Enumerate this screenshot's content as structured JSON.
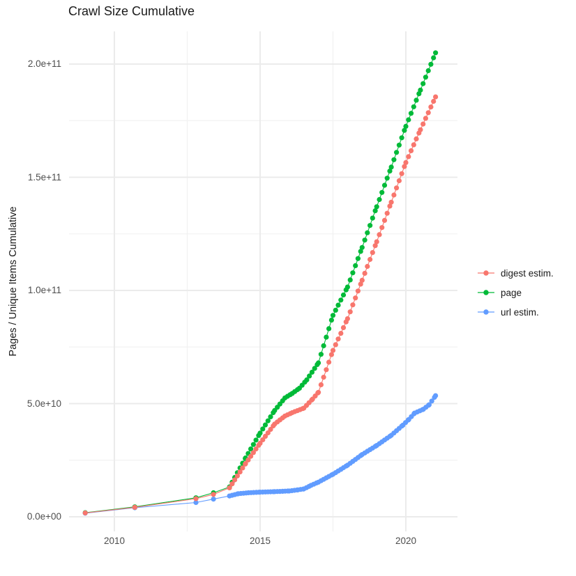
{
  "chart_data": {
    "type": "line",
    "marker": "point",
    "title": "Crawl Size Cumulative",
    "xlabel": "",
    "ylabel": "Pages / Unique Items Cumulative",
    "values_unit": "1e9 (billions of pages / unique items)",
    "x_range_years": [
      2008.45,
      2021.77
    ],
    "y_range": [
      0,
      215000000000.0
    ],
    "legend_position": "right",
    "grid": "on",
    "dot_interval_years": 0.09,
    "x_axis": {
      "ticks": [
        {
          "year": 2010,
          "label": "2010"
        },
        {
          "year": 2015,
          "label": "2015"
        },
        {
          "year": 2020,
          "label": "2020"
        }
      ],
      "minor_years": [
        2012.5,
        2017.5
      ]
    },
    "y_axis": {
      "ticks": [
        {
          "value_e9": 0,
          "label": "0.0e+00"
        },
        {
          "value_e9": 50,
          "label": "5.0e+10"
        },
        {
          "value_e9": 100,
          "label": "1.0e+11"
        },
        {
          "value_e9": 150,
          "label": "1.5e+11"
        },
        {
          "value_e9": 200,
          "label": "2.0e+11"
        }
      ],
      "minor_values_e9": [
        25,
        75,
        125,
        175
      ]
    },
    "series": [
      {
        "name": "digest estim.",
        "color": "#F8766D",
        "early_points": [
          [
            2009.0,
            1.7
          ],
          [
            2010.7,
            4.2
          ],
          [
            2012.8,
            8.0
          ],
          [
            2013.4,
            9.9
          ]
        ],
        "trend_anchors": [
          [
            2013.95,
            12.8
          ],
          [
            2014.5,
            23.5
          ],
          [
            2015.0,
            32.5
          ],
          [
            2015.5,
            41.0
          ],
          [
            2015.85,
            44.5
          ],
          [
            2016.1,
            46.0
          ],
          [
            2016.5,
            48.0
          ],
          [
            2016.8,
            52.0
          ],
          [
            2017.0,
            55.0
          ],
          [
            2017.5,
            73.5
          ],
          [
            2018.0,
            87.5
          ],
          [
            2018.5,
            104.5
          ],
          [
            2019.0,
            121.5
          ],
          [
            2019.5,
            139.0
          ],
          [
            2020.0,
            156.5
          ],
          [
            2020.5,
            171.0
          ],
          [
            2021.02,
            185.5
          ]
        ]
      },
      {
        "name": "page",
        "color": "#00BA38",
        "early_points": [
          [
            2009.0,
            1.8
          ],
          [
            2010.7,
            4.4
          ],
          [
            2012.8,
            8.4
          ],
          [
            2013.4,
            10.6
          ]
        ],
        "trend_anchors": [
          [
            2013.95,
            13.2
          ],
          [
            2014.5,
            26.0
          ],
          [
            2015.0,
            37.0
          ],
          [
            2015.5,
            47.0
          ],
          [
            2015.85,
            52.5
          ],
          [
            2016.1,
            54.5
          ],
          [
            2016.35,
            56.8
          ],
          [
            2016.6,
            60.5
          ],
          [
            2017.0,
            68.0
          ],
          [
            2017.5,
            89.0
          ],
          [
            2018.0,
            101.5
          ],
          [
            2018.5,
            119.0
          ],
          [
            2019.0,
            137.0
          ],
          [
            2019.5,
            154.5
          ],
          [
            2020.0,
            172.5
          ],
          [
            2020.5,
            188.5
          ],
          [
            2021.02,
            205.0
          ]
        ]
      },
      {
        "name": "url estim.",
        "color": "#619CFF",
        "early_points": [
          [
            2009.0,
            1.6
          ],
          [
            2010.7,
            4.0
          ],
          [
            2012.8,
            6.3
          ],
          [
            2013.4,
            7.8
          ]
        ],
        "trend_anchors": [
          [
            2013.95,
            9.2
          ],
          [
            2014.25,
            10.2
          ],
          [
            2014.6,
            10.6
          ],
          [
            2015.0,
            10.9
          ],
          [
            2015.5,
            11.1
          ],
          [
            2016.0,
            11.4
          ],
          [
            2016.3,
            11.9
          ],
          [
            2016.5,
            12.3
          ],
          [
            2016.75,
            13.9
          ],
          [
            2017.0,
            15.3
          ],
          [
            2017.5,
            18.8
          ],
          [
            2018.0,
            22.8
          ],
          [
            2018.5,
            27.5
          ],
          [
            2019.0,
            31.5
          ],
          [
            2019.5,
            36.0
          ],
          [
            2019.9,
            40.5
          ],
          [
            2020.1,
            43.0
          ],
          [
            2020.3,
            45.8
          ],
          [
            2020.6,
            47.5
          ],
          [
            2020.8,
            49.5
          ],
          [
            2021.02,
            53.5
          ]
        ]
      }
    ],
    "draw_order": [
      "page",
      "url estim.",
      "digest estim."
    ],
    "colors": {
      "grid_major": "#EBEBEB",
      "grid_minor": "#F2F2F2",
      "tick_text": "#4D4D4D",
      "title_text": "#1A1A1A",
      "background": "#FFFFFF"
    }
  }
}
